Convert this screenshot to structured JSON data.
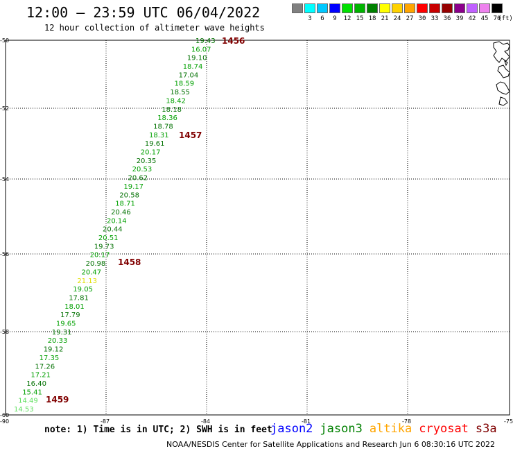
{
  "header": {
    "title": "12:00 – 23:59 UTC 06/04/2022",
    "subtitle": "12 hour collection of altimeter wave heights"
  },
  "legend": {
    "unit": "(ft)",
    "items": [
      {
        "label": "",
        "color": "#808080"
      },
      {
        "label": "3",
        "color": "#00ffff"
      },
      {
        "label": "6",
        "color": "#00c8ff"
      },
      {
        "label": "9",
        "color": "#0000ff"
      },
      {
        "label": "12",
        "color": "#00e000"
      },
      {
        "label": "15",
        "color": "#00b400"
      },
      {
        "label": "18",
        "color": "#008000"
      },
      {
        "label": "21",
        "color": "#ffff00"
      },
      {
        "label": "24",
        "color": "#ffd200"
      },
      {
        "label": "27",
        "color": "#ffa500"
      },
      {
        "label": "30",
        "color": "#ff0000"
      },
      {
        "label": "33",
        "color": "#c80000"
      },
      {
        "label": "36",
        "color": "#960000"
      },
      {
        "label": "39",
        "color": "#8b008b"
      },
      {
        "label": "42",
        "color": "#c060ff"
      },
      {
        "label": "45",
        "color": "#ee82ee"
      },
      {
        "label": "70",
        "color": "#000000"
      }
    ]
  },
  "map": {
    "lat_labels": [
      "-50",
      "-52",
      "-54",
      "-56",
      "-58",
      "-60"
    ],
    "lon_labels": [
      "-90",
      "-87",
      "-84",
      "-81",
      "-78",
      "-75"
    ],
    "track": {
      "color_dark": "#007000",
      "color_med": "#00a000",
      "color_yellow": "#e0e000",
      "color_light": "#60e060",
      "values": [
        "19.43",
        "16.07",
        "19.10",
        "18.74",
        "17.04",
        "18.59",
        "18.55",
        "18.42",
        "18.18",
        "18.36",
        "18.78",
        "18.31",
        "19.61",
        "20.17",
        "20.35",
        "20.53",
        "20.62",
        "19.17",
        "20.58",
        "18.71",
        "20.46",
        "20.14",
        "20.44",
        "20.51",
        "19.73",
        "20.17",
        "20.98",
        "20.47",
        "21.13",
        "19.05",
        "17.81",
        "18.01",
        "17.79",
        "19.65",
        "19.31",
        "20.33",
        "19.12",
        "17.35",
        "17.26",
        "17.21",
        "16.40",
        "15.41",
        "14.49",
        "14.53"
      ],
      "time_color": "#800000",
      "times": [
        "1456",
        "1457",
        "1458",
        "1459"
      ]
    }
  },
  "footer": {
    "note": "note: 1) Time is in UTC; 2) SWH is in feet",
    "satellites": [
      {
        "name": "jason2",
        "color": "#0000ff"
      },
      {
        "name": "jason3",
        "color": "#008000"
      },
      {
        "name": "altika",
        "color": "#ffa500"
      },
      {
        "name": "cryosat",
        "color": "#ff0000"
      },
      {
        "name": "s3a",
        "color": "#800000"
      }
    ],
    "credit": "NOAA/NESDIS Center for Satellite Applications and Research    Jun  6 08:30:16 UTC 2022"
  }
}
